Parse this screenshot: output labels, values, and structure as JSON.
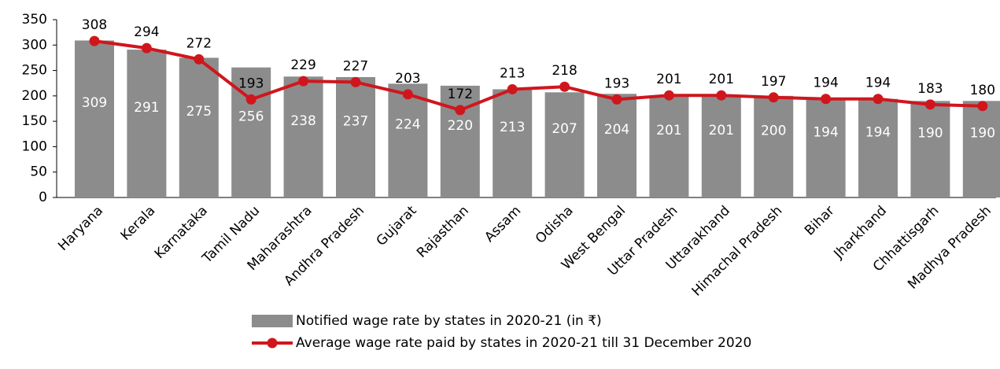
{
  "chart_data": {
    "type": "bar-line",
    "categories": [
      "Haryana",
      "Kerala",
      "Karnataka",
      "Tamil Nadu",
      "Maharashtra",
      "Andhra Pradesh",
      "Gujarat",
      "Rajasthan",
      "Assam",
      "Odisha",
      "West Bengal",
      "Uttar Pradesh",
      "Uttarakhand",
      "Himachal Pradesh",
      "Bihar",
      "Jharkhand",
      "Chhattisgarh",
      "Madhya Pradesh"
    ],
    "series": [
      {
        "name": "Notified wage rate by states in 2020-21 (in ₹)",
        "type": "bar",
        "color": "#8c8c8c",
        "values": [
          309,
          291,
          275,
          256,
          238,
          237,
          224,
          220,
          213,
          207,
          204,
          201,
          201,
          200,
          194,
          194,
          190,
          190
        ]
      },
      {
        "name": "Average wage rate paid by states in 2020-21 till 31 December 2020",
        "type": "line",
        "color": "#d0161d",
        "values": [
          308,
          294,
          272,
          193,
          229,
          227,
          203,
          172,
          213,
          218,
          193,
          201,
          201,
          197,
          194,
          194,
          183,
          180
        ]
      }
    ],
    "ylim": [
      0,
      350
    ],
    "yticks": [
      0,
      50,
      100,
      150,
      200,
      250,
      300,
      350
    ]
  }
}
